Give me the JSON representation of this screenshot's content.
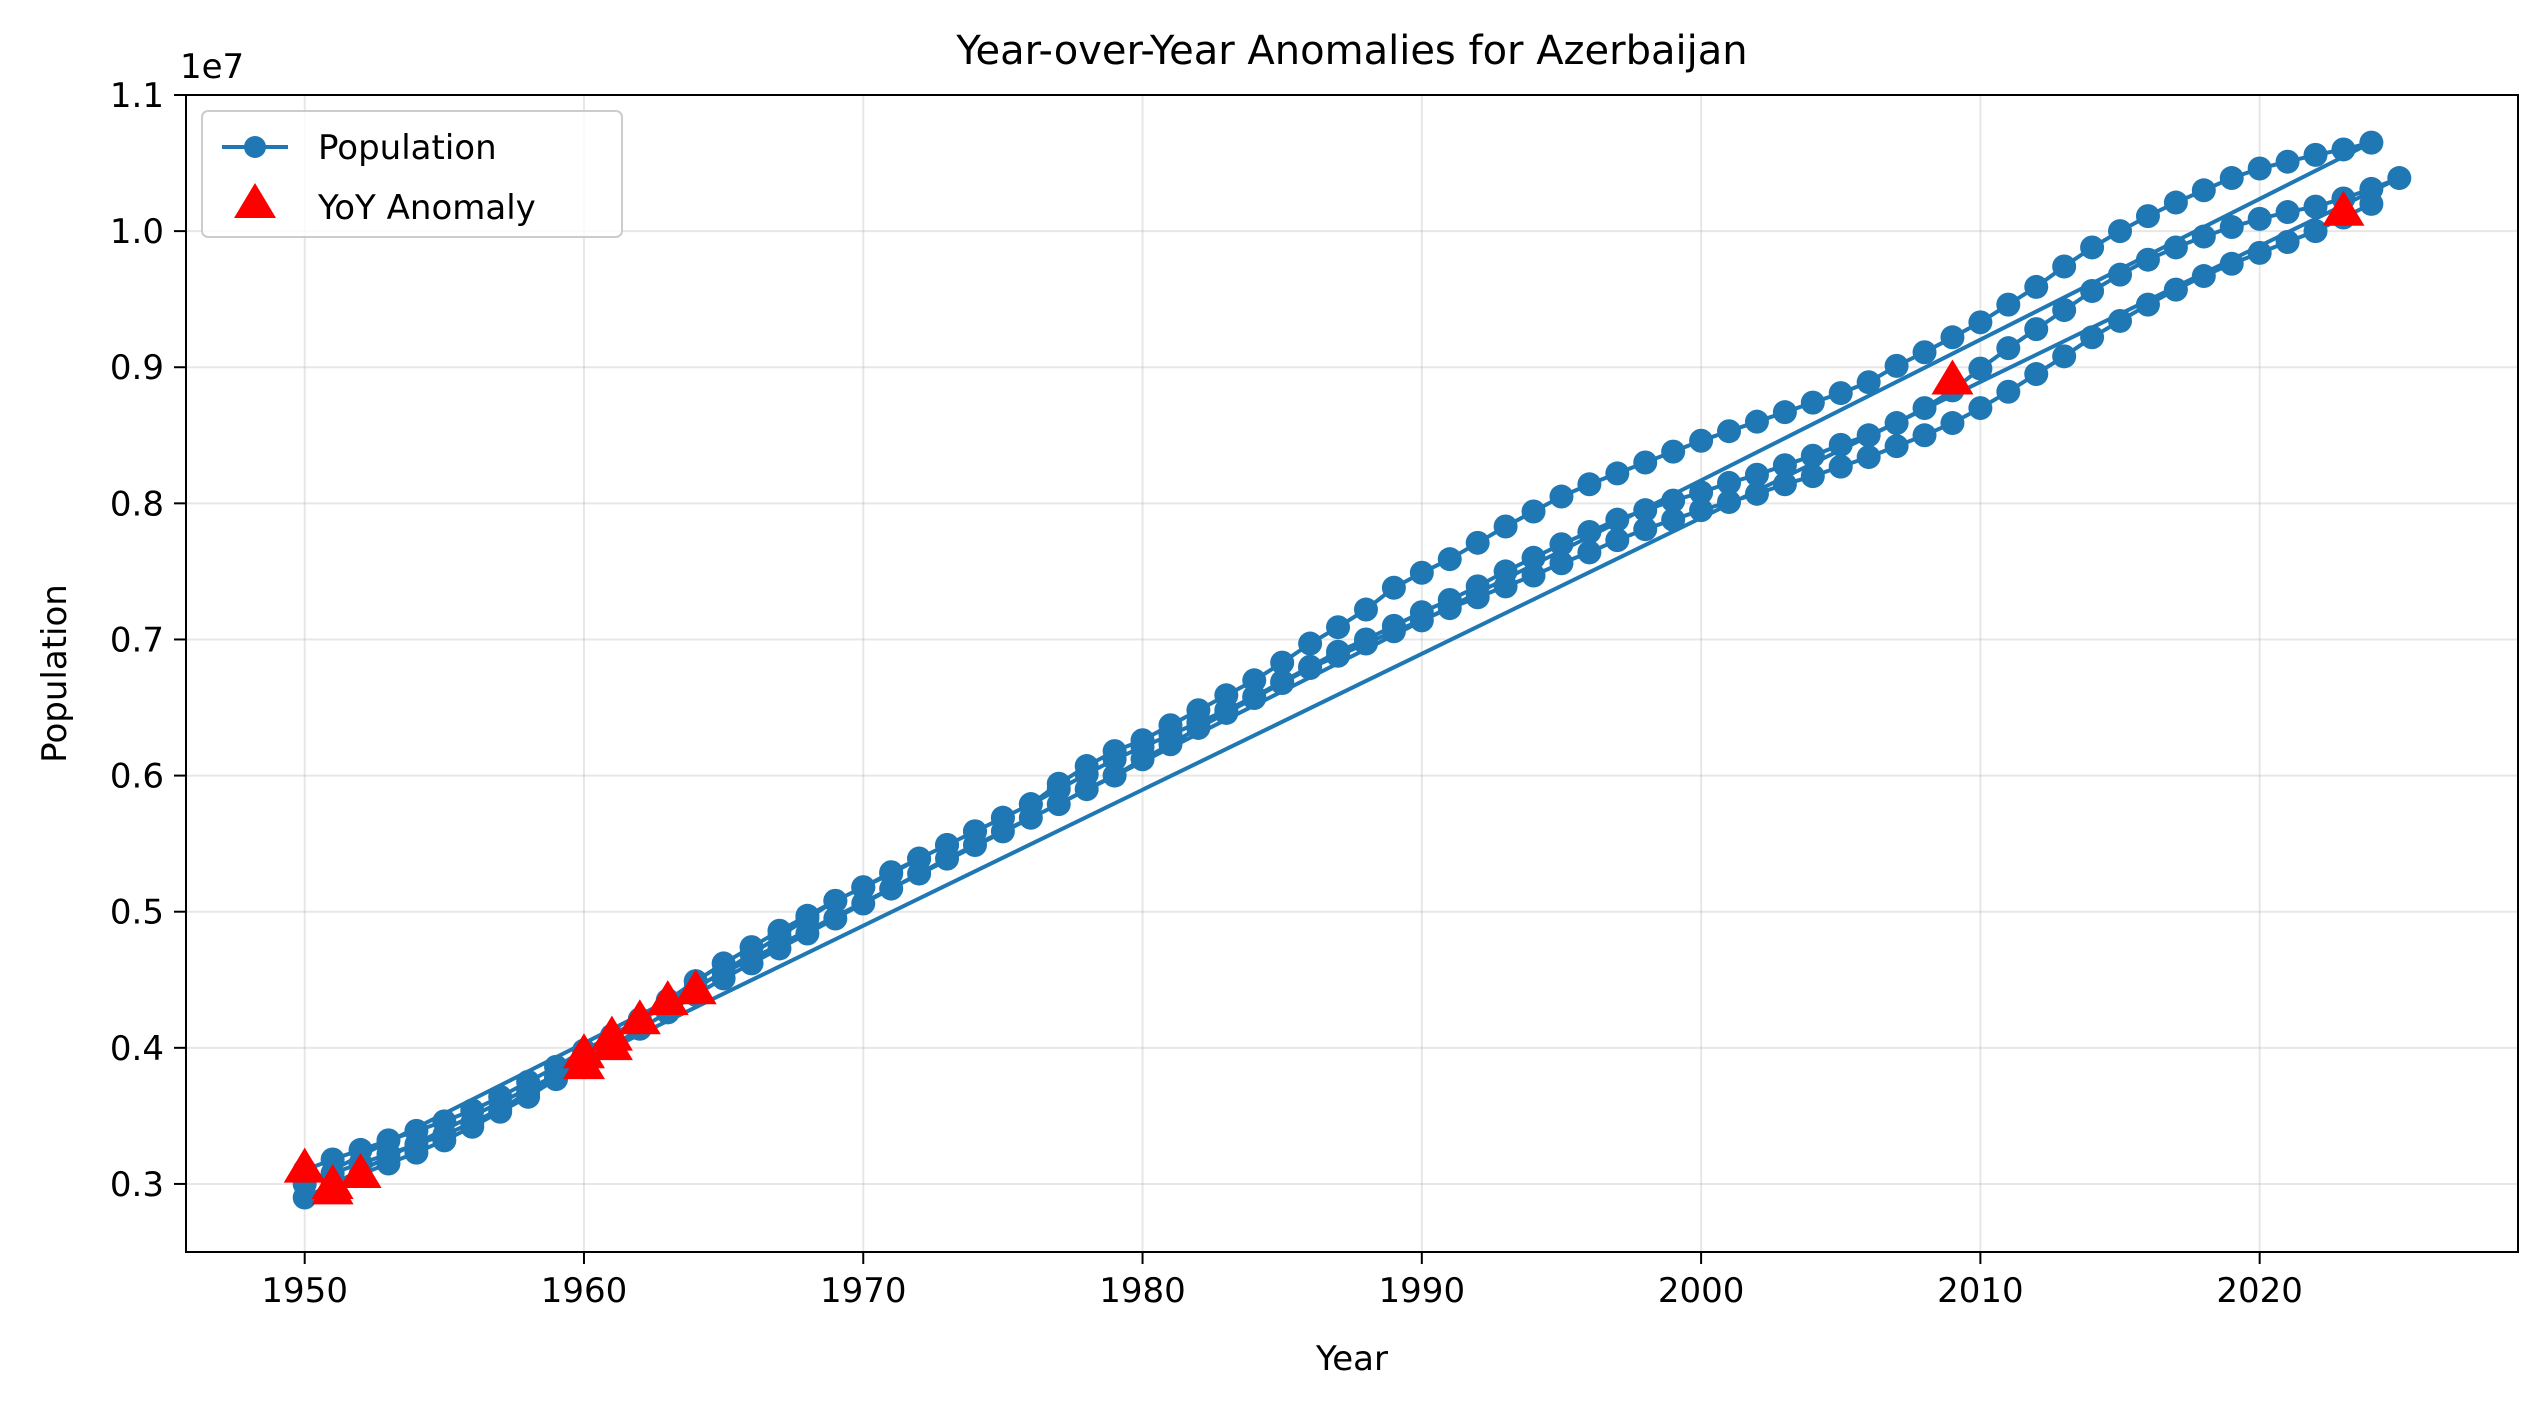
{
  "chart_data": {
    "type": "line",
    "title": "Year-over-Year Anomalies for Azerbaijan",
    "xlabel": "Year",
    "ylabel": "Population",
    "y_offset_text": "1e7",
    "xlim": [
      1945.75,
      2029.25
    ],
    "ylim": [
      2500000,
      11000000
    ],
    "x_ticks": [
      1950,
      1960,
      1970,
      1980,
      1990,
      2000,
      2010,
      2020
    ],
    "x_tick_labels": [
      "1950",
      "1960",
      "1970",
      "1980",
      "1990",
      "2000",
      "2010",
      "2020"
    ],
    "y_ticks": [
      3000000,
      4000000,
      5000000,
      6000000,
      7000000,
      8000000,
      9000000,
      10000000,
      11000000
    ],
    "y_tick_labels": [
      "0.3",
      "0.4",
      "0.5",
      "0.6",
      "0.7",
      "0.8",
      "0.9",
      "1.0",
      "1.1"
    ],
    "grid": true,
    "legend_position": "upper-left",
    "series": [
      {
        "name": "Population",
        "color": "#1f77b4",
        "marker": "circle",
        "segments": [
          {
            "x": [
              1950,
              1951,
              1952,
              1953,
              1954,
              1955,
              1956,
              1957,
              1958,
              1959,
              1960,
              1961,
              1962,
              1963,
              1964,
              1965,
              1966,
              1967,
              1968,
              1969,
              1970,
              1971,
              1972,
              1973,
              1974,
              1975,
              1976,
              1977,
              1978,
              1979,
              1980,
              1981,
              1982,
              1983,
              1984,
              1985,
              1986,
              1987,
              1988,
              1989,
              1990,
              1991,
              1992,
              1993,
              1994,
              1995,
              1996,
              1997,
              1998,
              1999,
              2000,
              2001,
              2002,
              2003,
              2004,
              2005,
              2006,
              2007,
              2008,
              2009,
              2010,
              2011,
              2012,
              2013,
              2014,
              2015,
              2016,
              2017,
              2018,
              2019,
              2020,
              2021,
              2022,
              2023,
              2024
            ],
            "y": [
              3100000,
              3180000,
              3250000,
              3320000,
              3390000,
              3460000,
              3540000,
              3640000,
              3750000,
              3860000,
              3980000,
              4090000,
              4210000,
              4350000,
              4490000,
              4620000,
              4740000,
              4860000,
              4970000,
              5080000,
              5180000,
              5290000,
              5390000,
              5490000,
              5590000,
              5690000,
              5790000,
              5940000,
              6070000,
              6180000,
              6260000,
              6370000,
              6480000,
              6590000,
              6700000,
              6830000,
              6970000,
              7090000,
              7220000,
              7380000,
              7490000,
              7590000,
              7710000,
              7830000,
              7940000,
              8050000,
              8140000,
              8220000,
              8300000,
              8380000,
              8460000,
              8530000,
              8600000,
              8670000,
              8740000,
              8810000,
              8890000,
              9010000,
              9110000,
              9220000,
              9330000,
              9460000,
              9590000,
              9740000,
              9880000,
              10000000,
              10110000,
              10210000,
              10300000,
              10390000,
              10460000,
              10510000,
              10560000,
              10600000,
              10650000
            ]
          },
          {
            "x": [
              1950,
              1951,
              1952,
              1953,
              1954,
              1955,
              1956,
              1957,
              1958,
              1959,
              1960,
              1961,
              1962,
              1963,
              1964,
              1965,
              1966,
              1967,
              1968,
              1969,
              1970,
              1971,
              1972,
              1973,
              1974,
              1975,
              1976,
              1977,
              1978,
              1979,
              1980,
              1981,
              1982,
              1983,
              1984,
              1985,
              1986,
              1987,
              1988,
              1989,
              1990,
              1991,
              1992,
              1993,
              1994,
              1995,
              1996,
              1997,
              1998,
              1999,
              2000,
              2001,
              2002,
              2003,
              2004,
              2005,
              2006,
              2007,
              2008,
              2009,
              2010,
              2011,
              2012,
              2013,
              2014,
              2015,
              2016,
              2017,
              2018,
              2019,
              2020,
              2021,
              2022,
              2023,
              2024,
              2025
            ],
            "y": [
              3000000,
              3080000,
              3150000,
              3220000,
              3290000,
              3360000,
              3450000,
              3550000,
              3670000,
              3790000,
              3920000,
              4060000,
              4200000,
              4320000,
              4440000,
              4560000,
              4690000,
              4820000,
              4950000,
              5080000,
              5180000,
              5280000,
              5390000,
              5490000,
              5590000,
              5690000,
              5790000,
              5900000,
              6010000,
              6120000,
              6210000,
              6300000,
              6390000,
              6480000,
              6580000,
              6690000,
              6800000,
              6910000,
              7000000,
              7100000,
              7200000,
              7290000,
              7390000,
              7500000,
              7600000,
              7700000,
              7790000,
              7880000,
              7950000,
              8020000,
              8080000,
              8150000,
              8210000,
              8280000,
              8350000,
              8430000,
              8500000,
              8590000,
              8700000,
              8830000,
              8990000,
              9140000,
              9280000,
              9420000,
              9560000,
              9680000,
              9790000,
              9880000,
              9960000,
              10030000,
              10090000,
              10140000,
              10180000,
              10240000,
              10310000,
              10390000
            ]
          },
          {
            "x": [
              1950,
              1951,
              1952,
              1953,
              1954,
              1955,
              1956,
              1957,
              1958,
              1959,
              1960,
              1961,
              1962,
              1963,
              1964,
              1965,
              1966,
              1967,
              1968,
              1969,
              1970,
              1971,
              1972,
              1973,
              1974,
              1975,
              1976,
              1977,
              1978,
              1979,
              1980,
              1981,
              1982,
              1983,
              1984,
              1985,
              1986,
              1987,
              1988,
              1989,
              1990,
              1991,
              1992,
              1993,
              1994,
              1995,
              1996,
              1997,
              1998,
              1999,
              2000,
              2001,
              2002,
              2003,
              2004,
              2005,
              2006,
              2007,
              2008,
              2009,
              2010,
              2011,
              2012,
              2013,
              2014,
              2015,
              2016,
              2017,
              2018,
              2019,
              2020,
              2021,
              2022,
              2023,
              2024
            ],
            "y": [
              2900000,
              2990000,
              3070000,
              3150000,
              3230000,
              3320000,
              3420000,
              3530000,
              3640000,
              3770000,
              3890000,
              4010000,
              4140000,
              4260000,
              4390000,
              4510000,
              4620000,
              4730000,
              4840000,
              4950000,
              5060000,
              5170000,
              5280000,
              5390000,
              5490000,
              5590000,
              5690000,
              5790000,
              5900000,
              6000000,
              6120000,
              6230000,
              6350000,
              6460000,
              6570000,
              6680000,
              6790000,
              6880000,
              6970000,
              7060000,
              7140000,
              7230000,
              7310000,
              7390000,
              7470000,
              7560000,
              7640000,
              7730000,
              7810000,
              7880000,
              7950000,
              8010000,
              8070000,
              8140000,
              8200000,
              8270000,
              8340000,
              8420000,
              8500000,
              8590000,
              8700000,
              8820000,
              8950000,
              9080000,
              9220000,
              9340000,
              9460000,
              9570000,
              9670000,
              9760000,
              9840000,
              9920000,
              10000000,
              10100000,
              10200000
            ]
          }
        ]
      },
      {
        "name": "YoY Anomaly",
        "color": "#ff0000",
        "marker": "triangle-up",
        "x": [
          1950,
          1951,
          1951,
          1952,
          1960,
          1960,
          1961,
          1961,
          1962,
          1963,
          1964,
          2009,
          2023
        ],
        "y": [
          3120000,
          3000000,
          2960000,
          3080000,
          3880000,
          3960000,
          4020000,
          4090000,
          4210000,
          4350000,
          4430000,
          8910000,
          10150000
        ]
      }
    ]
  }
}
